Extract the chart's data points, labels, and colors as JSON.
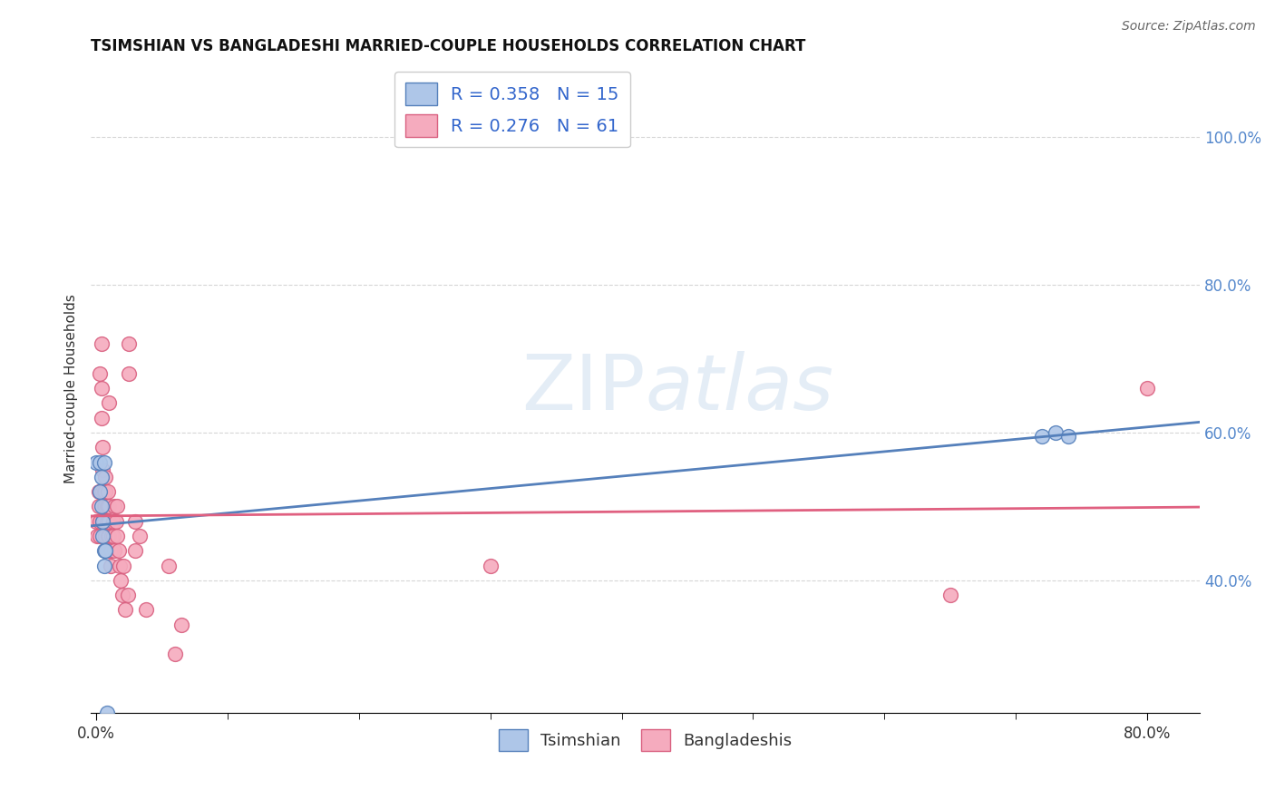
{
  "title": "TSIMSHIAN VS BANGLADESHI MARRIED-COUPLE HOUSEHOLDS CORRELATION CHART",
  "source": "Source: ZipAtlas.com",
  "ylabel": "Married-couple Households",
  "xlim": [
    -0.004,
    0.84
  ],
  "ylim": [
    0.22,
    1.1
  ],
  "xtick_positions": [
    0.0,
    0.8
  ],
  "xtick_labels": [
    "0.0%",
    "80.0%"
  ],
  "xtick_minor": [
    0.1,
    0.2,
    0.3,
    0.4,
    0.5,
    0.6,
    0.7
  ],
  "ytick_positions": [
    0.4,
    0.6,
    0.8,
    1.0
  ],
  "ytick_labels": [
    "40.0%",
    "60.0%",
    "80.0%",
    "100.0%"
  ],
  "watermark_text": "ZIPatlas",
  "legend_R1": "R = 0.358",
  "legend_N1": "N = 15",
  "legend_R2": "R = 0.276",
  "legend_N2": "N = 61",
  "tsimshian_color": "#aec6e8",
  "bangladeshi_color": "#f5abbe",
  "tsimshian_edge": "#5580bb",
  "bangladeshi_edge": "#d96080",
  "line_tsimshian": "#5580bb",
  "line_bangladeshi": "#e06080",
  "background_color": "#ffffff",
  "grid_color": "#bbbbbb",
  "tsimshian_x": [
    0.0,
    0.003,
    0.003,
    0.004,
    0.004,
    0.005,
    0.005,
    0.006,
    0.006,
    0.006,
    0.007,
    0.008,
    0.72,
    0.73,
    0.74
  ],
  "tsimshian_y": [
    0.56,
    0.56,
    0.52,
    0.54,
    0.5,
    0.48,
    0.46,
    0.44,
    0.42,
    0.56,
    0.44,
    0.22,
    0.595,
    0.6,
    0.595
  ],
  "bangladeshi_x": [
    0.0,
    0.001,
    0.002,
    0.002,
    0.003,
    0.003,
    0.003,
    0.004,
    0.004,
    0.004,
    0.005,
    0.005,
    0.005,
    0.005,
    0.006,
    0.006,
    0.006,
    0.007,
    0.007,
    0.007,
    0.007,
    0.008,
    0.008,
    0.008,
    0.009,
    0.009,
    0.009,
    0.01,
    0.01,
    0.01,
    0.011,
    0.011,
    0.012,
    0.012,
    0.013,
    0.013,
    0.014,
    0.014,
    0.015,
    0.016,
    0.016,
    0.017,
    0.018,
    0.019,
    0.02,
    0.021,
    0.022,
    0.024,
    0.03,
    0.03,
    0.033,
    0.038,
    0.06,
    0.065,
    0.3,
    0.65,
    0.01,
    0.025,
    0.025,
    0.055,
    0.8
  ],
  "bangladeshi_y": [
    0.48,
    0.46,
    0.5,
    0.52,
    0.48,
    0.46,
    0.68,
    0.72,
    0.66,
    0.62,
    0.58,
    0.55,
    0.52,
    0.48,
    0.52,
    0.5,
    0.48,
    0.54,
    0.52,
    0.5,
    0.46,
    0.5,
    0.48,
    0.44,
    0.52,
    0.5,
    0.46,
    0.5,
    0.48,
    0.46,
    0.44,
    0.42,
    0.46,
    0.44,
    0.48,
    0.46,
    0.5,
    0.44,
    0.48,
    0.5,
    0.46,
    0.44,
    0.42,
    0.4,
    0.38,
    0.42,
    0.36,
    0.38,
    0.44,
    0.48,
    0.46,
    0.36,
    0.3,
    0.34,
    0.42,
    0.38,
    0.64,
    0.68,
    0.72,
    0.42,
    0.66
  ]
}
